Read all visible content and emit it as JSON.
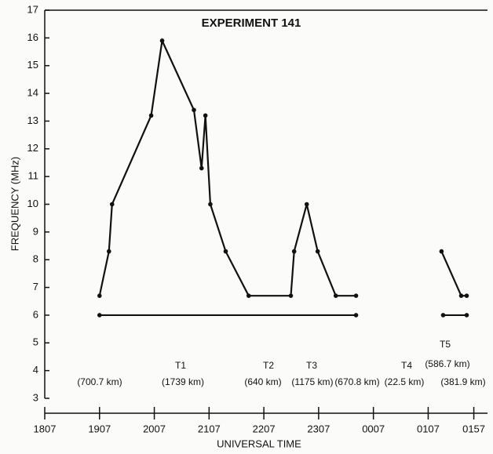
{
  "chart_data": {
    "type": "line",
    "title": "EXPERIMENT 141",
    "x_label": "UNIVERSAL TIME",
    "y_label": "FREQUENCY (MHz)",
    "series": [
      {
        "color": "#111111",
        "x": [
          19.117,
          19.289,
          19.346,
          20.06,
          20.26,
          20.84,
          20.98,
          21.05,
          21.14,
          21.42,
          21.84,
          22.61,
          22.67,
          22.9,
          23.1,
          23.43,
          23.8,
          null,
          25.36,
          25.72,
          25.82
        ],
        "values": [
          6.7,
          8.3,
          10.0,
          13.2,
          15.9,
          13.4,
          11.3,
          13.2,
          10.0,
          8.3,
          6.7,
          6.7,
          8.3,
          10.0,
          8.3,
          6.7,
          6.7,
          null,
          8.3,
          6.7,
          6.7
        ]
      },
      {
        "color": "#111111",
        "x": [
          19.117,
          23.8,
          null,
          25.39,
          25.82
        ],
        "values": [
          6.0,
          6.0,
          null,
          6.0,
          6.0
        ]
      }
    ],
    "annotations": [
      "T1",
      "T2",
      "T3",
      "T4",
      "T5",
      "(700.7 km)",
      "(1739 km)",
      "(640 km)",
      "(1175 km)",
      "(670.8 km)",
      "(22.5 km)",
      "(586.7 km)",
      "(381.9 km)"
    ],
    "xlim": [
      18.117,
      26.2
    ],
    "xticks": [
      {
        "value": 18.117,
        "label": "1807"
      },
      {
        "value": 19.117,
        "label": "1907"
      },
      {
        "value": 20.117,
        "label": "2007"
      },
      {
        "value": 21.117,
        "label": "2107"
      },
      {
        "value": 22.117,
        "label": "2207"
      },
      {
        "value": 23.117,
        "label": "2307"
      },
      {
        "value": 24.117,
        "label": "0007"
      },
      {
        "value": 25.117,
        "label": "0107"
      },
      {
        "value": 25.95,
        "label": "0157"
      }
    ],
    "ylim": [
      3,
      17
    ],
    "yticks": [
      3,
      4,
      5,
      6,
      7,
      8,
      9,
      10,
      11,
      12,
      13,
      14,
      15,
      16,
      17
    ]
  }
}
